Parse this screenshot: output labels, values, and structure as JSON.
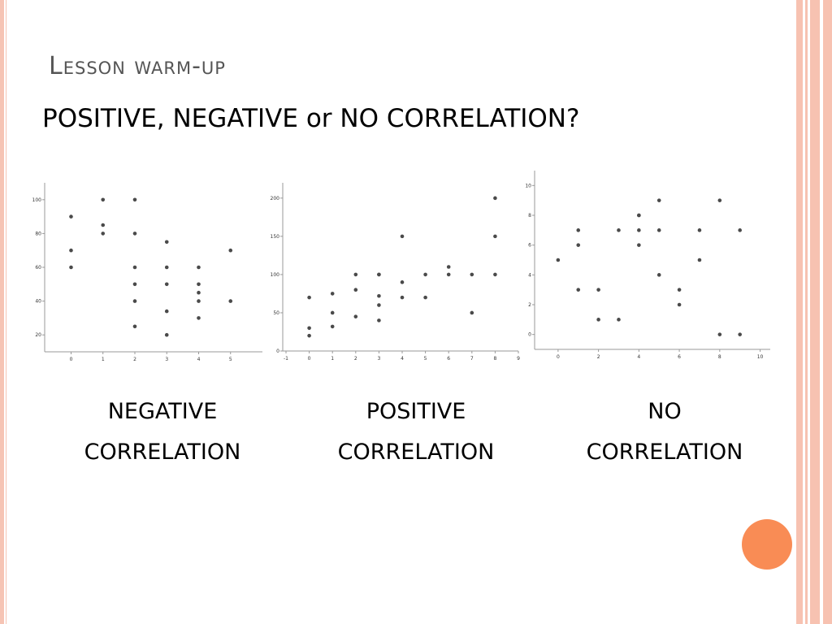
{
  "slide": {
    "title": "Lesson warm-up",
    "question": "POSITIVE, NEGATIVE or NO CORRELATION?",
    "accent_color": "#f98c55",
    "border_color": "#f6c4b4"
  },
  "charts": [
    {
      "caption_line1": "NEGATIVE",
      "caption_line2": "CORRELATION"
    },
    {
      "caption_line1": "POSITIVE",
      "caption_line2": "CORRELATION"
    },
    {
      "caption_line1": "NO",
      "caption_line2": "CORRELATION"
    }
  ],
  "chart_data": [
    {
      "type": "scatter",
      "title": "",
      "xlabel": "",
      "ylabel": "",
      "xlim": [
        -0.7,
        6
      ],
      "ylim": [
        10,
        110
      ],
      "x_ticks": [
        0,
        1,
        2,
        3,
        4,
        5
      ],
      "y_ticks": [
        20,
        40,
        60,
        80,
        100
      ],
      "points": [
        [
          0,
          90
        ],
        [
          0,
          70
        ],
        [
          0,
          60
        ],
        [
          1,
          100
        ],
        [
          1,
          85
        ],
        [
          1,
          80
        ],
        [
          2,
          100
        ],
        [
          2,
          80
        ],
        [
          2,
          60
        ],
        [
          2,
          50
        ],
        [
          2,
          40
        ],
        [
          2,
          25
        ],
        [
          3,
          75
        ],
        [
          3,
          60
        ],
        [
          3,
          50
        ],
        [
          3,
          34
        ],
        [
          3,
          20
        ],
        [
          4,
          60
        ],
        [
          4,
          50
        ],
        [
          4,
          45
        ],
        [
          4,
          40
        ],
        [
          4,
          30
        ],
        [
          5,
          70
        ],
        [
          5,
          40
        ]
      ],
      "grid": false
    },
    {
      "type": "scatter",
      "title": "",
      "xlabel": "",
      "ylabel": "",
      "xlim": [
        -1,
        9
      ],
      "ylim": [
        0,
        220
      ],
      "x_ticks": [
        -1,
        0,
        1,
        2,
        3,
        4,
        5,
        6,
        7,
        8,
        9
      ],
      "y_ticks": [
        0,
        50,
        100,
        150,
        200
      ],
      "points": [
        [
          0,
          70
        ],
        [
          0,
          30
        ],
        [
          0,
          20
        ],
        [
          1,
          75
        ],
        [
          1,
          50
        ],
        [
          1,
          32
        ],
        [
          2,
          100
        ],
        [
          2,
          80
        ],
        [
          2,
          45
        ],
        [
          3,
          100
        ],
        [
          3,
          100
        ],
        [
          3,
          72
        ],
        [
          3,
          60
        ],
        [
          3,
          40
        ],
        [
          4,
          150
        ],
        [
          4,
          90
        ],
        [
          4,
          70
        ],
        [
          5,
          100
        ],
        [
          5,
          70
        ],
        [
          6,
          110
        ],
        [
          6,
          100
        ],
        [
          7,
          100
        ],
        [
          7,
          50
        ],
        [
          8,
          200
        ],
        [
          8,
          150
        ],
        [
          8,
          100
        ]
      ],
      "grid": false
    },
    {
      "type": "scatter",
      "title": "",
      "xlabel": "",
      "ylabel": "",
      "xlim": [
        -1,
        10.5
      ],
      "ylim": [
        -1,
        11
      ],
      "x_ticks": [
        0,
        2,
        4,
        6,
        8,
        10
      ],
      "y_ticks": [
        0,
        2,
        4,
        6,
        8,
        10
      ],
      "points": [
        [
          0,
          5
        ],
        [
          1,
          7
        ],
        [
          1,
          6
        ],
        [
          1,
          3
        ],
        [
          2,
          3
        ],
        [
          2,
          1
        ],
        [
          3,
          7
        ],
        [
          3,
          1
        ],
        [
          4,
          8
        ],
        [
          4,
          8
        ],
        [
          4,
          7
        ],
        [
          4,
          6
        ],
        [
          5,
          9
        ],
        [
          5,
          7
        ],
        [
          5,
          4
        ],
        [
          6,
          3
        ],
        [
          6,
          2
        ],
        [
          7,
          7
        ],
        [
          7,
          5
        ],
        [
          8,
          9
        ],
        [
          8,
          0
        ],
        [
          9,
          7
        ],
        [
          9,
          0
        ]
      ],
      "grid": false
    }
  ]
}
